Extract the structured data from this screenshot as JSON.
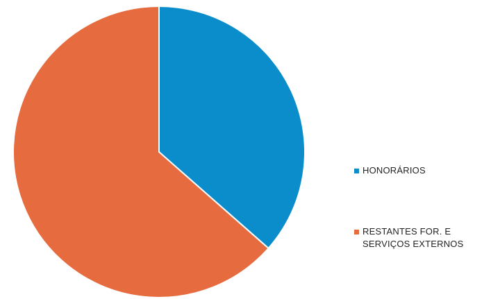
{
  "chart_data": {
    "type": "pie",
    "title": "",
    "slices": [
      {
        "label": "HONORÁRIOS",
        "value": 36.5,
        "color": "#0b8dcb"
      },
      {
        "label": "RESTANTES FOR. E SERVIÇOS EXTERNOS",
        "value": 63.5,
        "color": "#e66b3e"
      }
    ],
    "start_angle_deg": 0,
    "direction": "clockwise",
    "legend_position": "right"
  },
  "legend": {
    "items": [
      {
        "label": "HONORÁRIOS",
        "color": "#0b8dcb"
      },
      {
        "label": "RESTANTES FOR. E SERVIÇOS EXTERNOS",
        "color": "#e66b3e"
      }
    ]
  }
}
